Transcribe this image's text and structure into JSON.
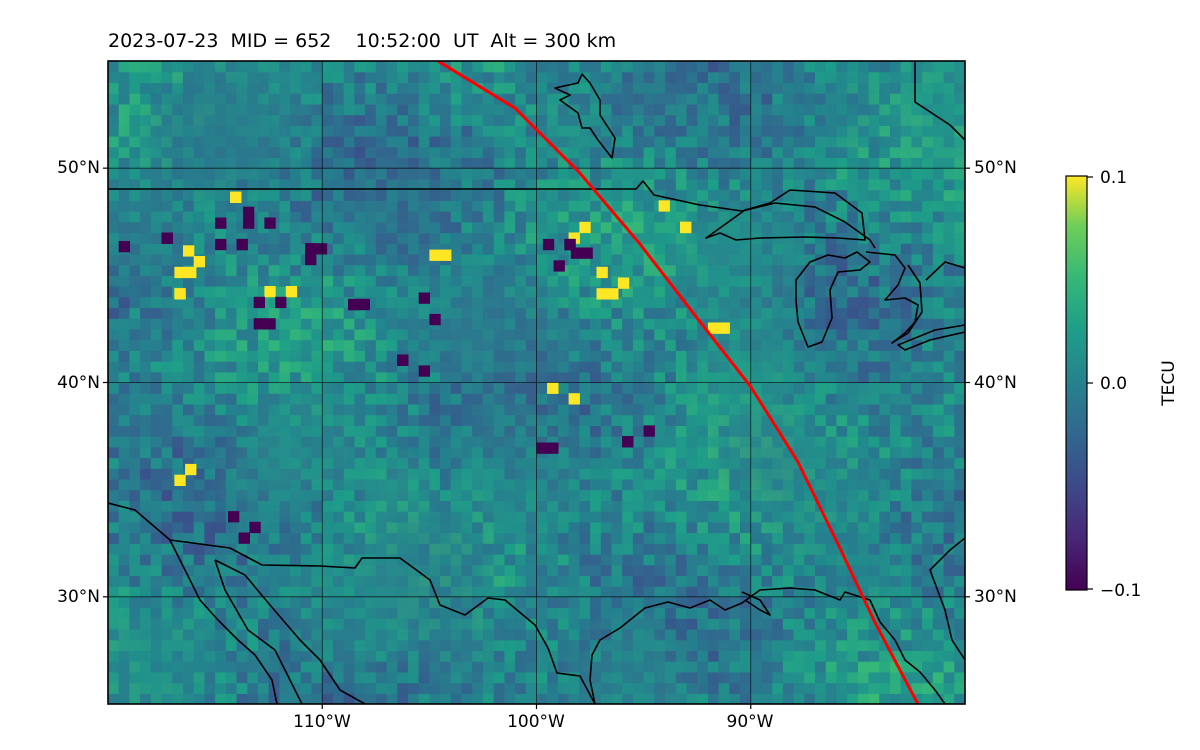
{
  "title": {
    "text": "2023-07-23  MID = 652    10:52:00  UT  Alt = 300 km"
  },
  "map": {
    "projection": "PlateCarree",
    "lon_range": [
      -120,
      -80
    ],
    "lat_range": [
      25,
      55
    ],
    "grid": true,
    "lat_ticks": [
      {
        "value": 50,
        "label": "50°N"
      },
      {
        "value": 40,
        "label": "40°N"
      },
      {
        "value": 30,
        "label": "30°N"
      }
    ],
    "lon_ticks": [
      {
        "value": -110,
        "label": "110°W"
      },
      {
        "value": -100,
        "label": "100°W"
      },
      {
        "value": -90,
        "label": "90°W"
      }
    ],
    "field": {
      "name": "TEC perturbation",
      "colormap": "viridis",
      "vmin": -0.1,
      "vmax": 0.1,
      "hotspots_positive": [
        [
          -116.5,
          45.9
        ],
        [
          -116.9,
          44.4
        ],
        [
          -113.8,
          48.4
        ],
        [
          -98.0,
          47.0
        ],
        [
          -96.7,
          44.4
        ],
        [
          -116.4,
          35.2
        ],
        [
          -104.5,
          45.2
        ],
        [
          -99.0,
          39.0
        ],
        [
          -112.2,
          43.5
        ],
        [
          -93.8,
          47.5
        ],
        [
          -92.0,
          41.8
        ]
      ],
      "hotspots_negative": [
        [
          -117.0,
          47.0
        ],
        [
          -120.0,
          46.6
        ],
        [
          -114.5,
          46.7
        ],
        [
          -113.2,
          47.7
        ],
        [
          -112.7,
          43.0
        ],
        [
          -105.0,
          43.2
        ],
        [
          -98.4,
          46.3
        ],
        [
          -99.2,
          45.7
        ],
        [
          -110.3,
          45.5
        ],
        [
          -108.8,
          43.9
        ],
        [
          -113.9,
          33.0
        ],
        [
          -106.0,
          40.3
        ],
        [
          -95.5,
          37.0
        ],
        [
          -99.5,
          37.2
        ]
      ]
    },
    "terminator": {
      "color": "#ff0000",
      "points": [
        [
          -104.6,
          55.0
        ],
        [
          -101.0,
          52.8
        ],
        [
          -98.0,
          49.8
        ],
        [
          -95.2,
          46.5
        ],
        [
          -92.5,
          43.0
        ],
        [
          -90.0,
          39.8
        ],
        [
          -87.8,
          36.3
        ],
        [
          -85.8,
          32.2
        ],
        [
          -84.2,
          28.8
        ],
        [
          -82.2,
          25.0
        ]
      ]
    },
    "coastline_color": "#000000"
  },
  "colorbar": {
    "label": "TECU",
    "ticks": [
      {
        "value": 0.1,
        "label": "0.1"
      },
      {
        "value": 0.0,
        "label": "0.0"
      },
      {
        "value": -0.1,
        "label": "−0.1"
      }
    ]
  }
}
